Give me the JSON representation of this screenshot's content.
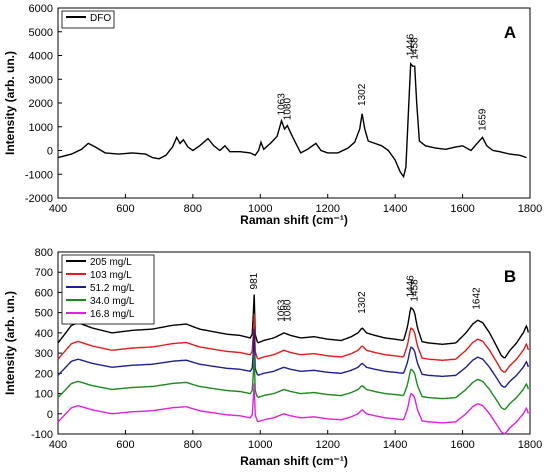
{
  "chart_data": [
    {
      "type": "line",
      "panel_label": "A",
      "xlabel": "Raman shift (cm⁻¹)",
      "ylabel": "Intensity (arb. un.)",
      "xlim": [
        400,
        1800
      ],
      "ylim": [
        -2000,
        6000
      ],
      "xticks": [
        400,
        600,
        800,
        1000,
        1200,
        1400,
        1600,
        1800
      ],
      "yticks": [
        -2000,
        -1000,
        0,
        1000,
        2000,
        3000,
        4000,
        5000,
        6000
      ],
      "legend_position": "top-left",
      "peak_labels": [
        "1063",
        "1080",
        "1302",
        "1446",
        "1458",
        "1659"
      ],
      "series": [
        {
          "name": "DFO",
          "color": "#000000",
          "points": [
            [
              400,
              -300
            ],
            [
              440,
              -150
            ],
            [
              470,
              50
            ],
            [
              490,
              300
            ],
            [
              510,
              150
            ],
            [
              540,
              -100
            ],
            [
              580,
              -150
            ],
            [
              620,
              -100
            ],
            [
              660,
              -150
            ],
            [
              680,
              -300
            ],
            [
              700,
              -350
            ],
            [
              720,
              -200
            ],
            [
              740,
              150
            ],
            [
              752,
              550
            ],
            [
              762,
              300
            ],
            [
              772,
              450
            ],
            [
              785,
              150
            ],
            [
              800,
              0
            ],
            [
              820,
              200
            ],
            [
              845,
              500
            ],
            [
              862,
              200
            ],
            [
              880,
              0
            ],
            [
              895,
              200
            ],
            [
              910,
              -50
            ],
            [
              940,
              -50
            ],
            [
              970,
              -100
            ],
            [
              985,
              -200
            ],
            [
              995,
              0
            ],
            [
              1002,
              350
            ],
            [
              1010,
              50
            ],
            [
              1030,
              300
            ],
            [
              1050,
              600
            ],
            [
              1063,
              1250
            ],
            [
              1072,
              900
            ],
            [
              1080,
              1050
            ],
            [
              1095,
              600
            ],
            [
              1120,
              -100
            ],
            [
              1140,
              50
            ],
            [
              1165,
              300
            ],
            [
              1180,
              0
            ],
            [
              1200,
              -100
            ],
            [
              1230,
              -100
            ],
            [
              1260,
              100
            ],
            [
              1280,
              350
            ],
            [
              1295,
              900
            ],
            [
              1302,
              1550
            ],
            [
              1310,
              900
            ],
            [
              1320,
              400
            ],
            [
              1340,
              300
            ],
            [
              1360,
              200
            ],
            [
              1380,
              0
            ],
            [
              1400,
              -400
            ],
            [
              1415,
              -900
            ],
            [
              1425,
              -1100
            ],
            [
              1432,
              -700
            ],
            [
              1440,
              1800
            ],
            [
              1446,
              3650
            ],
            [
              1452,
              3550
            ],
            [
              1458,
              3550
            ],
            [
              1464,
              2000
            ],
            [
              1472,
              400
            ],
            [
              1490,
              200
            ],
            [
              1520,
              100
            ],
            [
              1550,
              50
            ],
            [
              1580,
              150
            ],
            [
              1600,
              200
            ],
            [
              1625,
              0
            ],
            [
              1640,
              250
            ],
            [
              1659,
              550
            ],
            [
              1672,
              200
            ],
            [
              1690,
              0
            ],
            [
              1710,
              -50
            ],
            [
              1740,
              -150
            ],
            [
              1770,
              -200
            ],
            [
              1790,
              -300
            ]
          ]
        }
      ]
    },
    {
      "type": "line",
      "panel_label": "B",
      "xlabel": "Raman shift (cm⁻¹)",
      "ylabel": "Intensity (arb. un.)",
      "xlim": [
        400,
        1800
      ],
      "ylim": [
        -100,
        800
      ],
      "xticks": [
        400,
        600,
        800,
        1000,
        1200,
        1400,
        1600,
        1800
      ],
      "yticks": [
        -100,
        0,
        100,
        200,
        300,
        400,
        500,
        600,
        700,
        800
      ],
      "legend_position": "top-left",
      "peak_labels": [
        "981",
        "1063",
        "1080",
        "1302",
        "1446",
        "1458",
        "1642"
      ],
      "base_profile": [
        [
          400,
          0
        ],
        [
          440,
          70
        ],
        [
          460,
          80
        ],
        [
          500,
          60
        ],
        [
          560,
          40
        ],
        [
          620,
          50
        ],
        [
          680,
          55
        ],
        [
          740,
          70
        ],
        [
          780,
          75
        ],
        [
          820,
          55
        ],
        [
          860,
          45
        ],
        [
          900,
          35
        ],
        [
          940,
          30
        ],
        [
          970,
          20
        ],
        [
          978,
          40
        ],
        [
          981,
          240
        ],
        [
          984,
          40
        ],
        [
          992,
          0
        ],
        [
          1010,
          10
        ],
        [
          1040,
          20
        ],
        [
          1070,
          40
        ],
        [
          1090,
          30
        ],
        [
          1120,
          20
        ],
        [
          1160,
          25
        ],
        [
          1200,
          15
        ],
        [
          1240,
          10
        ],
        [
          1270,
          25
        ],
        [
          1290,
          40
        ],
        [
          1302,
          60
        ],
        [
          1315,
          40
        ],
        [
          1340,
          30
        ],
        [
          1370,
          20
        ],
        [
          1400,
          15
        ],
        [
          1425,
          10
        ],
        [
          1436,
          60
        ],
        [
          1446,
          140
        ],
        [
          1452,
          135
        ],
        [
          1458,
          120
        ],
        [
          1466,
          60
        ],
        [
          1480,
          5
        ],
        [
          1500,
          0
        ],
        [
          1540,
          -5
        ],
        [
          1580,
          0
        ],
        [
          1610,
          40
        ],
        [
          1630,
          75
        ],
        [
          1645,
          90
        ],
        [
          1660,
          80
        ],
        [
          1680,
          40
        ],
        [
          1700,
          -10
        ],
        [
          1715,
          -50
        ],
        [
          1725,
          -60
        ],
        [
          1740,
          -30
        ],
        [
          1760,
          0
        ],
        [
          1780,
          40
        ],
        [
          1790,
          70
        ],
        [
          1797,
          30
        ]
      ],
      "series": [
        {
          "name": "205 mg/L",
          "color": "#000000",
          "offset": 350,
          "scale": 1.25,
          "peak981": 590
        },
        {
          "name": "103 mg/L",
          "color": "#e31a1c",
          "offset": 270,
          "scale": 1.1,
          "peak981": 495
        },
        {
          "name": "51.2 mg/L",
          "color": "#1f1f8f",
          "offset": 190,
          "scale": 1.0,
          "peak981": 420
        },
        {
          "name": "34.0 mg/L",
          "color": "#1a8a1a",
          "offset": 80,
          "scale": 1.0,
          "peak981": 290
        },
        {
          "name": "16.8 mg/L",
          "color": "#e020e0",
          "offset": -40,
          "scale": 1.0,
          "peak981": 150
        }
      ]
    }
  ]
}
